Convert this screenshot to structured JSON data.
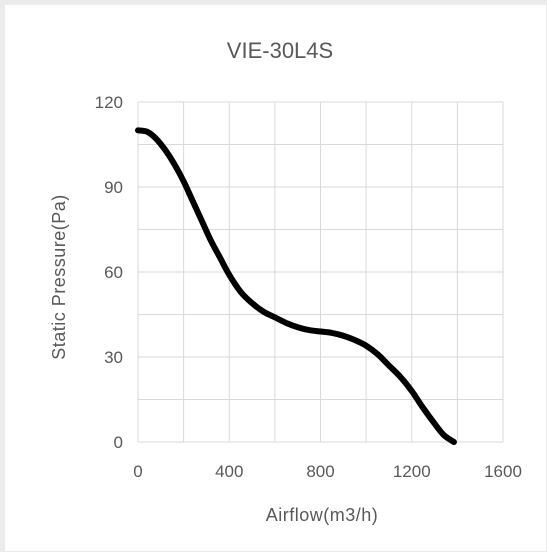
{
  "chart_data": {
    "type": "line",
    "title": "VIE-30L4S",
    "xlabel": "Airflow(m3/h)",
    "ylabel": "Static Pressure(Pa)",
    "xlim": [
      0,
      1600
    ],
    "ylim": [
      0,
      120
    ],
    "xticks": [
      0,
      400,
      800,
      1200,
      1600
    ],
    "yticks": [
      0,
      30,
      60,
      90,
      120
    ],
    "x_minor_step": 200,
    "y_minor_step": 15,
    "grid": true,
    "line_color": "#000000",
    "grid_color": "#d9d9d9",
    "series": [
      {
        "x": [
          0,
          40,
          80,
          120,
          160,
          200,
          240,
          280,
          320,
          360,
          400,
          450,
          500,
          550,
          600,
          650,
          700,
          750,
          800,
          850,
          900,
          950,
          1000,
          1050,
          1100,
          1150,
          1200,
          1250,
          1300,
          1340,
          1385
        ],
        "y": [
          110,
          109.5,
          107,
          103,
          98,
          92,
          85,
          78,
          71,
          65,
          59,
          53,
          49,
          46,
          44,
          42,
          40.5,
          39.5,
          39,
          38.5,
          37.5,
          36,
          34,
          31,
          27,
          23,
          18,
          12,
          6.5,
          2.5,
          0
        ]
      }
    ]
  }
}
